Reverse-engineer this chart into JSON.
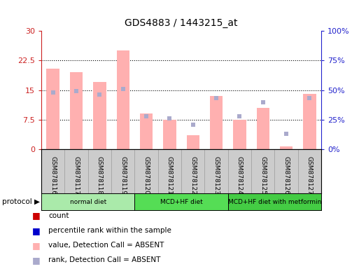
{
  "title": "GDS4883 / 1443215_at",
  "samples": [
    "GSM878116",
    "GSM878117",
    "GSM878118",
    "GSM878119",
    "GSM878120",
    "GSM878121",
    "GSM878122",
    "GSM878123",
    "GSM878124",
    "GSM878125",
    "GSM878126",
    "GSM878127"
  ],
  "bar_values": [
    20.5,
    19.5,
    17.0,
    25.0,
    9.0,
    7.5,
    3.5,
    13.5,
    7.5,
    10.5,
    0.8,
    14.0
  ],
  "bar_color": "#ffb0b0",
  "dot_values_pct": [
    48,
    49,
    46,
    51,
    28,
    26,
    21,
    43,
    28,
    40,
    13,
    43
  ],
  "dot_color": "#aaaacc",
  "ylim_left": [
    0,
    30
  ],
  "ylim_right": [
    0,
    100
  ],
  "yticks_left": [
    0,
    7.5,
    15,
    22.5,
    30
  ],
  "ytick_labels_left": [
    "0",
    "7.5",
    "15",
    "22.5",
    "30"
  ],
  "yticks_right": [
    0,
    25,
    50,
    75,
    100
  ],
  "ytick_labels_right": [
    "0%",
    "25%",
    "50%",
    "75%",
    "100%"
  ],
  "protocols": [
    {
      "label": "normal diet",
      "start": 0,
      "end": 4,
      "color": "#aaeaaa"
    },
    {
      "label": "MCD+HF diet",
      "start": 4,
      "end": 8,
      "color": "#55dd55"
    },
    {
      "label": "MCD+HF diet with metformin",
      "start": 8,
      "end": 12,
      "color": "#44cc44"
    }
  ],
  "legend_items": [
    {
      "label": "count",
      "color": "#cc0000"
    },
    {
      "label": "percentile rank within the sample",
      "color": "#0000cc"
    },
    {
      "label": "value, Detection Call = ABSENT",
      "color": "#ffb0b0"
    },
    {
      "label": "rank, Detection Call = ABSENT",
      "color": "#aaaacc"
    }
  ],
  "left_axis_color": "#cc2222",
  "right_axis_color": "#2222cc",
  "bar_width": 0.55,
  "dot_size": 5,
  "sample_bg_color": "#cccccc",
  "plot_border_color": "#000000"
}
